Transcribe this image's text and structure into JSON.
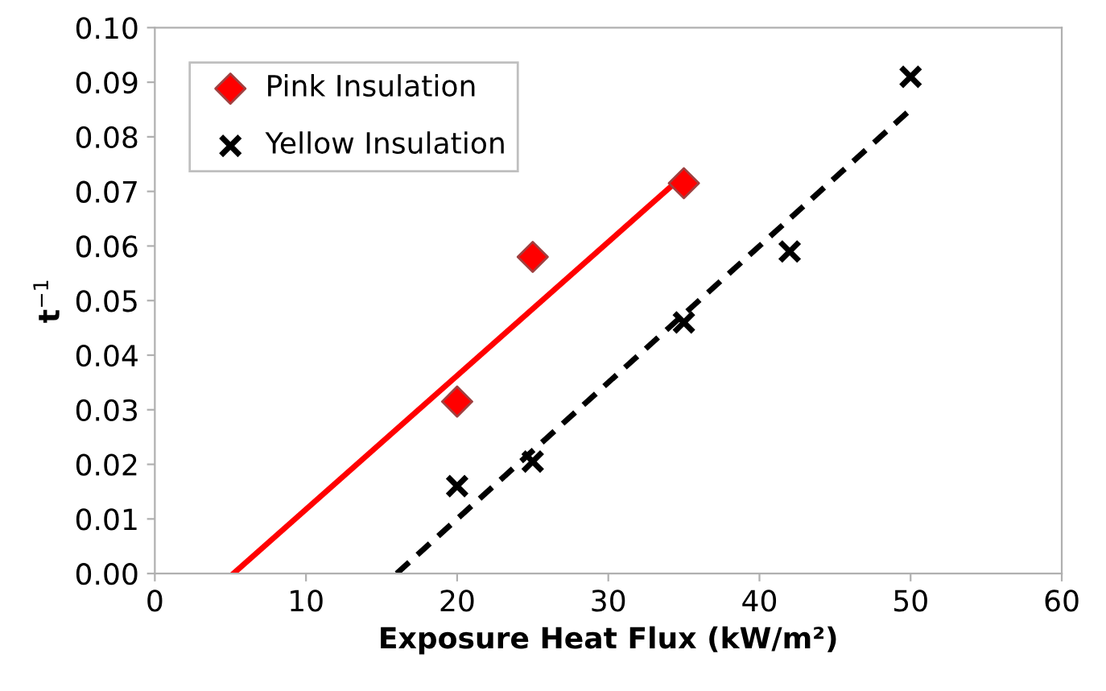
{
  "chart_data": {
    "type": "scatter",
    "xlabel": "Exposure Heat Flux (kW/m²)",
    "ylabel": "t$^{−1}$",
    "xlim": [
      0,
      60
    ],
    "xticks": [
      0,
      10,
      20,
      30,
      40,
      50,
      60
    ],
    "ylim": [
      0,
      0.1
    ],
    "yticks": [
      {
        "value": 0,
        "label": "0.00"
      },
      {
        "value": 0.01,
        "label": "0.01"
      },
      {
        "value": 0.02,
        "label": "0.02"
      },
      {
        "value": 0.03,
        "label": "0.03"
      },
      {
        "value": 0.04,
        "label": "0.04"
      },
      {
        "value": 0.05,
        "label": "0.05"
      },
      {
        "value": 0.06,
        "label": "0.06"
      },
      {
        "value": 0.07,
        "label": "0.07"
      },
      {
        "value": 0.08,
        "label": "0.08"
      },
      {
        "value": 0.09,
        "label": "0.09"
      },
      {
        "value": 0.1,
        "label": "0.10"
      }
    ],
    "grid": false,
    "legend": "top left",
    "series": [
      {
        "name": "Pink Insulation",
        "marker": "diamond",
        "color": "#ff0000",
        "x": [
          20,
          25,
          35
        ],
        "values": [
          0.0315,
          0.058,
          0.0715
        ]
      },
      {
        "name": "Yellow Insulation",
        "marker": "cross",
        "color": "#000000",
        "x": [
          20,
          25,
          35,
          42,
          50
        ],
        "values": [
          0.016,
          0.0205,
          0.046,
          0.059,
          0.091
        ]
      },
      {
        "type": "line",
        "color": "#ff0000",
        "line_style": "solid",
        "x": [
          5.2,
          35
        ],
        "values": [
          0,
          0.073
        ]
      },
      {
        "type": "line",
        "color": "#000000",
        "line_style": "dashed",
        "x": [
          16,
          50
        ],
        "values": [
          0,
          0.085
        ]
      }
    ]
  }
}
